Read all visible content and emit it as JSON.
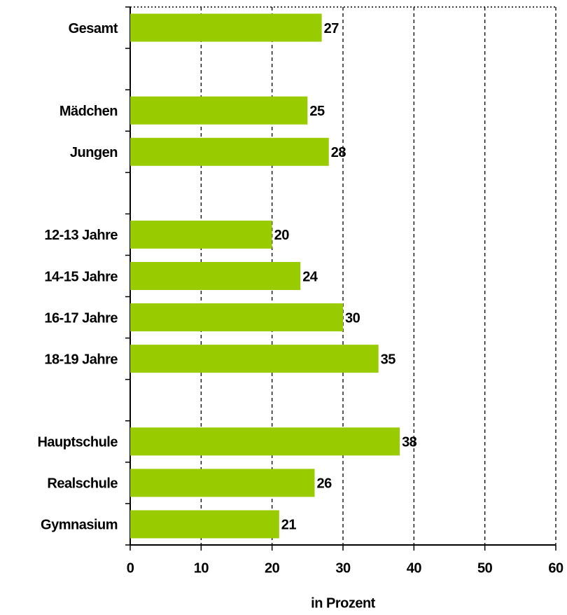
{
  "chart_data": {
    "type": "bar",
    "orientation": "horizontal",
    "categories": [
      "Gesamt",
      null,
      "Mädchen",
      "Jungen",
      null,
      "12-13 Jahre",
      "14-15 Jahre",
      "16-17 Jahre",
      "18-19 Jahre",
      null,
      "Hauptschule",
      "Realschule",
      "Gymnasium"
    ],
    "values": [
      27,
      null,
      25,
      28,
      null,
      20,
      24,
      30,
      35,
      null,
      38,
      26,
      21
    ],
    "color": "#99cc00",
    "xlim": [
      0,
      60
    ],
    "xticks": [
      0,
      10,
      20,
      30,
      40,
      50,
      60
    ],
    "x_label": "in Prozent",
    "grid": true
  }
}
